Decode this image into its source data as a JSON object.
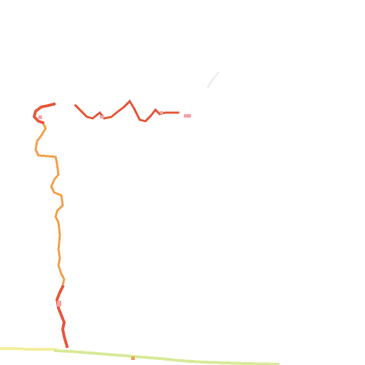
{
  "scene": {
    "description_label": "",
    "colors": {
      "background": "#ffffff",
      "red": "#e8573a",
      "orange": "#f4a04a",
      "pink": "#f3a3a8",
      "lime": "#d7ea98",
      "yellow": "#f2ef9e",
      "faint": "#f1f1f1"
    }
  }
}
